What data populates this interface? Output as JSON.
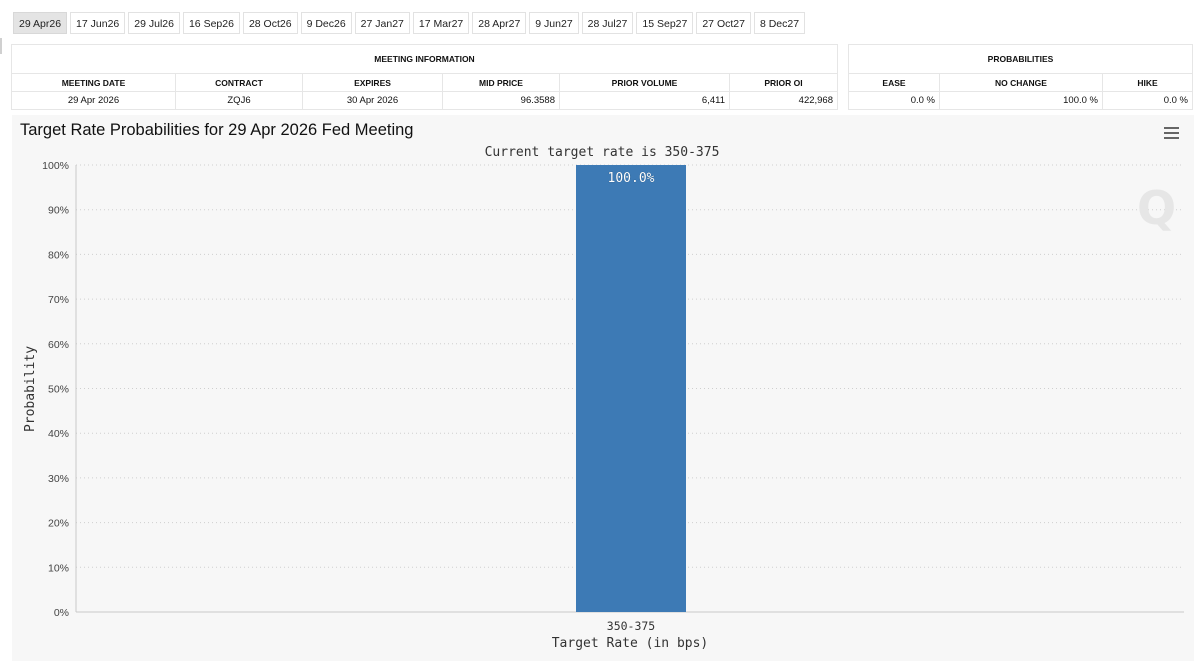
{
  "tabs": [
    {
      "label": "29 Apr26",
      "active": true
    },
    {
      "label": "17 Jun26",
      "active": false
    },
    {
      "label": "29 Jul26",
      "active": false
    },
    {
      "label": "16 Sep26",
      "active": false
    },
    {
      "label": "28 Oct26",
      "active": false
    },
    {
      "label": "9 Dec26",
      "active": false
    },
    {
      "label": "27 Jan27",
      "active": false
    },
    {
      "label": "17 Mar27",
      "active": false
    },
    {
      "label": "28 Apr27",
      "active": false
    },
    {
      "label": "9 Jun27",
      "active": false
    },
    {
      "label": "28 Jul27",
      "active": false
    },
    {
      "label": "15 Sep27",
      "active": false
    },
    {
      "label": "27 Oct27",
      "active": false
    },
    {
      "label": "8 Dec27",
      "active": false
    }
  ],
  "meeting_info": {
    "title": "MEETING INFORMATION",
    "headers": {
      "meeting_date": "MEETING DATE",
      "contract": "CONTRACT",
      "expires": "EXPIRES",
      "mid_price": "MID PRICE",
      "prior_volume": "PRIOR VOLUME",
      "prior_oi": "PRIOR OI"
    },
    "row": {
      "meeting_date": "29 Apr 2026",
      "contract": "ZQJ6",
      "expires": "30 Apr 2026",
      "mid_price": "96.3588",
      "prior_volume": "6,411",
      "prior_oi": "422,968"
    }
  },
  "probabilities": {
    "title": "PROBABILITIES",
    "headers": {
      "ease": "EASE",
      "no_change": "NO CHANGE",
      "hike": "HIKE"
    },
    "row": {
      "ease": "0.0 %",
      "no_change": "100.0 %",
      "hike": "0.0 %"
    }
  },
  "chart": {
    "menu_icon": "hamburger-menu-icon",
    "logo_icon": "q-logo-icon",
    "logo_text": "Q",
    "bar_color": "#3d7ab5"
  },
  "chart_data": {
    "type": "bar",
    "title": "Target Rate Probabilities for 29 Apr 2026 Fed Meeting",
    "subtitle": "Current target rate is 350-375",
    "categories": [
      "350-375"
    ],
    "values": [
      100.0
    ],
    "data_labels": [
      "100.0%"
    ],
    "xlabel": "Target Rate (in bps)",
    "ylabel": "Probability",
    "ylim": [
      0,
      100
    ],
    "yticks": [
      0,
      10,
      20,
      30,
      40,
      50,
      60,
      70,
      80,
      90,
      100
    ],
    "ytick_labels": [
      "0%",
      "10%",
      "20%",
      "30%",
      "40%",
      "50%",
      "60%",
      "70%",
      "80%",
      "90%",
      "100%"
    ],
    "grid": true
  }
}
